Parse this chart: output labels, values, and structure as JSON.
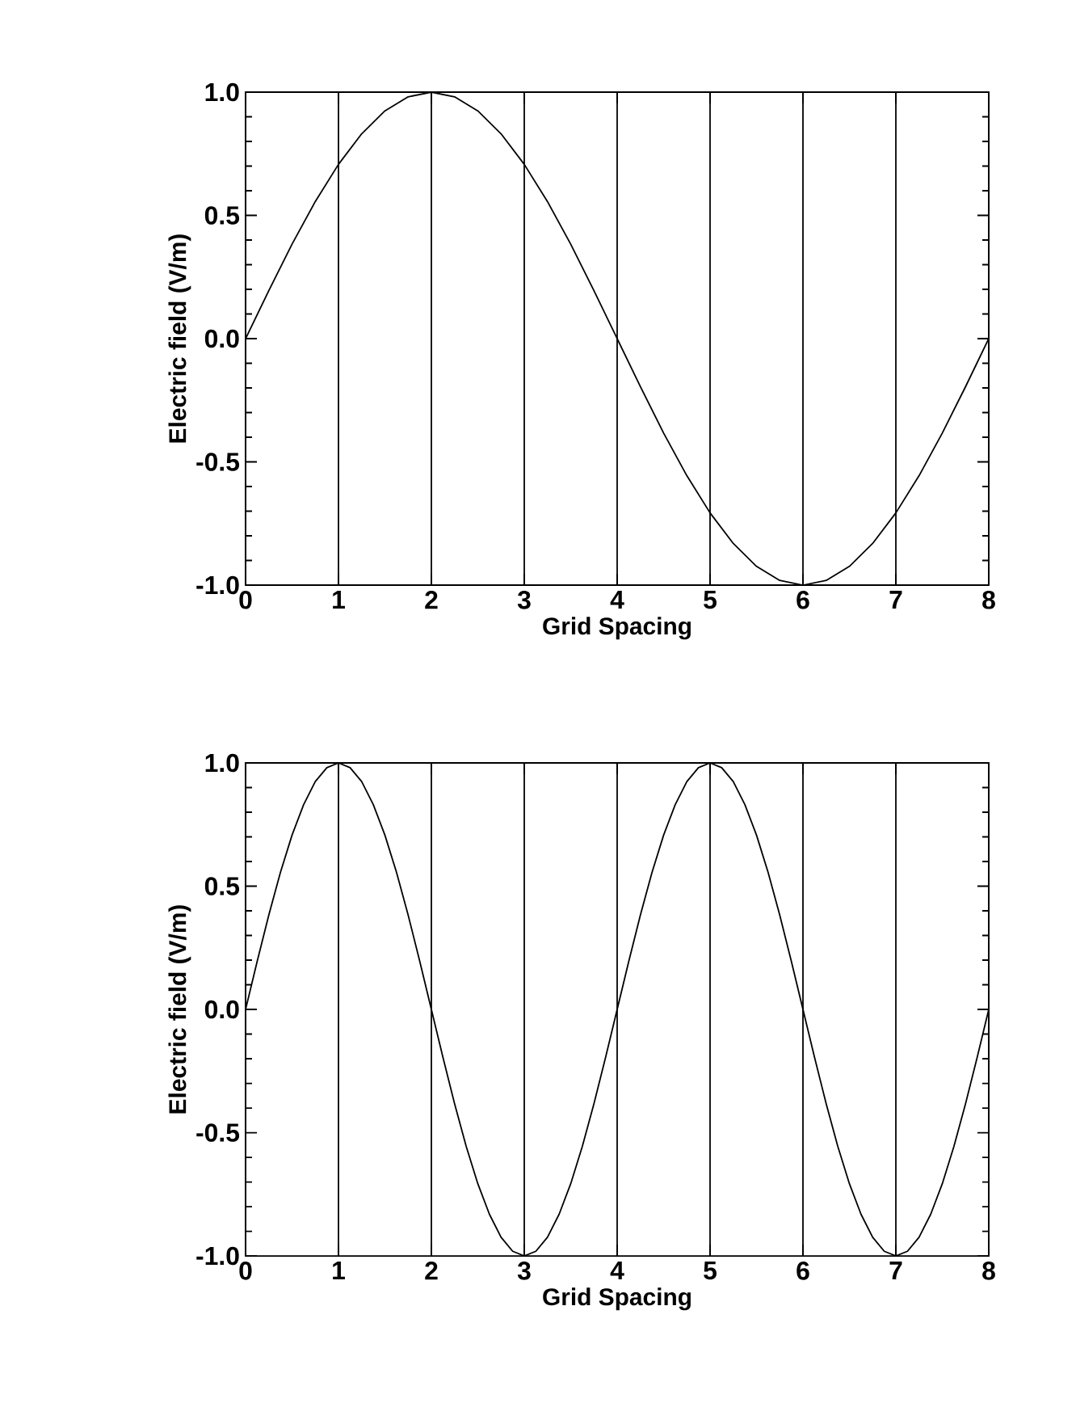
{
  "chart_data": [
    {
      "type": "line",
      "xlabel": "Grid Spacing",
      "ylabel": "Electric field (V/m)",
      "color": "#000000",
      "grid": "x",
      "xlim": [
        0,
        8
      ],
      "ylim": [
        -1.0,
        1.0
      ],
      "xticks": [
        0,
        1,
        2,
        3,
        4,
        5,
        6,
        7,
        8
      ],
      "yticks": [
        {
          "value": -1,
          "label": "-1.0"
        },
        {
          "value": -0.5,
          "label": "-0.5"
        },
        {
          "value": 0,
          "label": "0.0"
        },
        {
          "value": 0.5,
          "label": "0.5"
        },
        {
          "value": 1,
          "label": "1.0"
        }
      ],
      "x": [
        0,
        0.25,
        0.5,
        0.75,
        1,
        1.25,
        1.5,
        1.75,
        2,
        2.25,
        2.5,
        2.75,
        3,
        3.25,
        3.5,
        3.75,
        4,
        4.25,
        4.5,
        4.75,
        5,
        5.25,
        5.5,
        5.75,
        6,
        6.25,
        6.5,
        6.75,
        7,
        7.25,
        7.5,
        7.75,
        8
      ],
      "values": [
        0,
        0.195,
        0.383,
        0.556,
        0.707,
        0.831,
        0.924,
        0.981,
        1,
        0.981,
        0.924,
        0.831,
        0.707,
        0.556,
        0.383,
        0.195,
        0,
        -0.195,
        -0.383,
        -0.556,
        -0.707,
        -0.831,
        -0.924,
        -0.981,
        -1,
        -0.981,
        -0.924,
        -0.831,
        -0.707,
        -0.556,
        -0.383,
        -0.195,
        0
      ]
    },
    {
      "type": "line",
      "xlabel": "Grid Spacing",
      "ylabel": "Electric field (V/m)",
      "color": "#000000",
      "grid": "x",
      "xlim": [
        0,
        8
      ],
      "ylim": [
        -1.0,
        1.0
      ],
      "xticks": [
        0,
        1,
        2,
        3,
        4,
        5,
        6,
        7,
        8
      ],
      "yticks": [
        {
          "value": -1,
          "label": "-1.0"
        },
        {
          "value": -0.5,
          "label": "-0.5"
        },
        {
          "value": 0,
          "label": "0.0"
        },
        {
          "value": 0.5,
          "label": "0.5"
        },
        {
          "value": 1,
          "label": "1.0"
        }
      ],
      "x": [
        0,
        0.125,
        0.25,
        0.375,
        0.5,
        0.625,
        0.75,
        0.875,
        1,
        1.125,
        1.25,
        1.375,
        1.5,
        1.625,
        1.75,
        1.875,
        2,
        2.125,
        2.25,
        2.375,
        2.5,
        2.625,
        2.75,
        2.875,
        3,
        3.125,
        3.25,
        3.375,
        3.5,
        3.625,
        3.75,
        3.875,
        4,
        4.125,
        4.25,
        4.375,
        4.5,
        4.625,
        4.75,
        4.875,
        5,
        5.125,
        5.25,
        5.375,
        5.5,
        5.625,
        5.75,
        5.875,
        6,
        6.125,
        6.25,
        6.375,
        6.5,
        6.625,
        6.75,
        6.875,
        7,
        7.125,
        7.25,
        7.375,
        7.5,
        7.625,
        7.75,
        7.875,
        8
      ],
      "values": [
        0,
        0.195,
        0.383,
        0.556,
        0.707,
        0.831,
        0.924,
        0.981,
        1,
        0.981,
        0.924,
        0.831,
        0.707,
        0.556,
        0.383,
        0.195,
        0,
        -0.195,
        -0.383,
        -0.556,
        -0.707,
        -0.831,
        -0.924,
        -0.981,
        -1,
        -0.981,
        -0.924,
        -0.831,
        -0.707,
        -0.556,
        -0.383,
        -0.195,
        0,
        0.195,
        0.383,
        0.556,
        0.707,
        0.831,
        0.924,
        0.981,
        1,
        0.981,
        0.924,
        0.831,
        0.707,
        0.556,
        0.383,
        0.195,
        0,
        -0.195,
        -0.383,
        -0.556,
        -0.707,
        -0.831,
        -0.924,
        -0.981,
        -1,
        -0.981,
        -0.924,
        -0.831,
        -0.707,
        -0.556,
        -0.383,
        -0.195,
        0
      ]
    }
  ]
}
